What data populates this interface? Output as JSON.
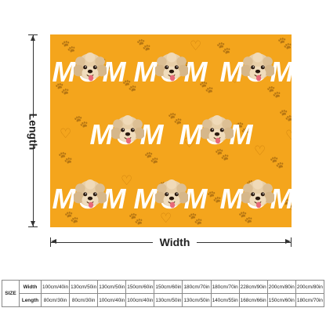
{
  "colors": {
    "blanket": "#f4a51c",
    "pattern": "#d2850f",
    "text": "#ffffff",
    "dog_fur": "#e2c49e"
  },
  "blanket": {
    "motif_text": "MOM",
    "motif_image": "dog-face-photo",
    "pattern_icons": [
      "paw-print-icon",
      "heart-icon"
    ]
  },
  "dimensions": {
    "length_label": "Length",
    "width_label": "Width"
  },
  "size_table": {
    "header": "SIZE",
    "rows": [
      {
        "label": "Width",
        "values": [
          "100cm/40in",
          "130cm/50in",
          "130cm/50in",
          "150cm/60in",
          "150cm/60in",
          "180cm/70in",
          "180cm/70in",
          "228cm/90in",
          "200cm/80in",
          "200cm/80in"
        ]
      },
      {
        "label": "Length",
        "values": [
          "80cm/30in",
          "80cm/30in",
          "100cm/40in",
          "100cm/40in",
          "130cm/50in",
          "130cm/50in",
          "140cm/55in",
          "168cm/66in",
          "150cm/60in",
          "180cm/70in"
        ]
      }
    ]
  }
}
